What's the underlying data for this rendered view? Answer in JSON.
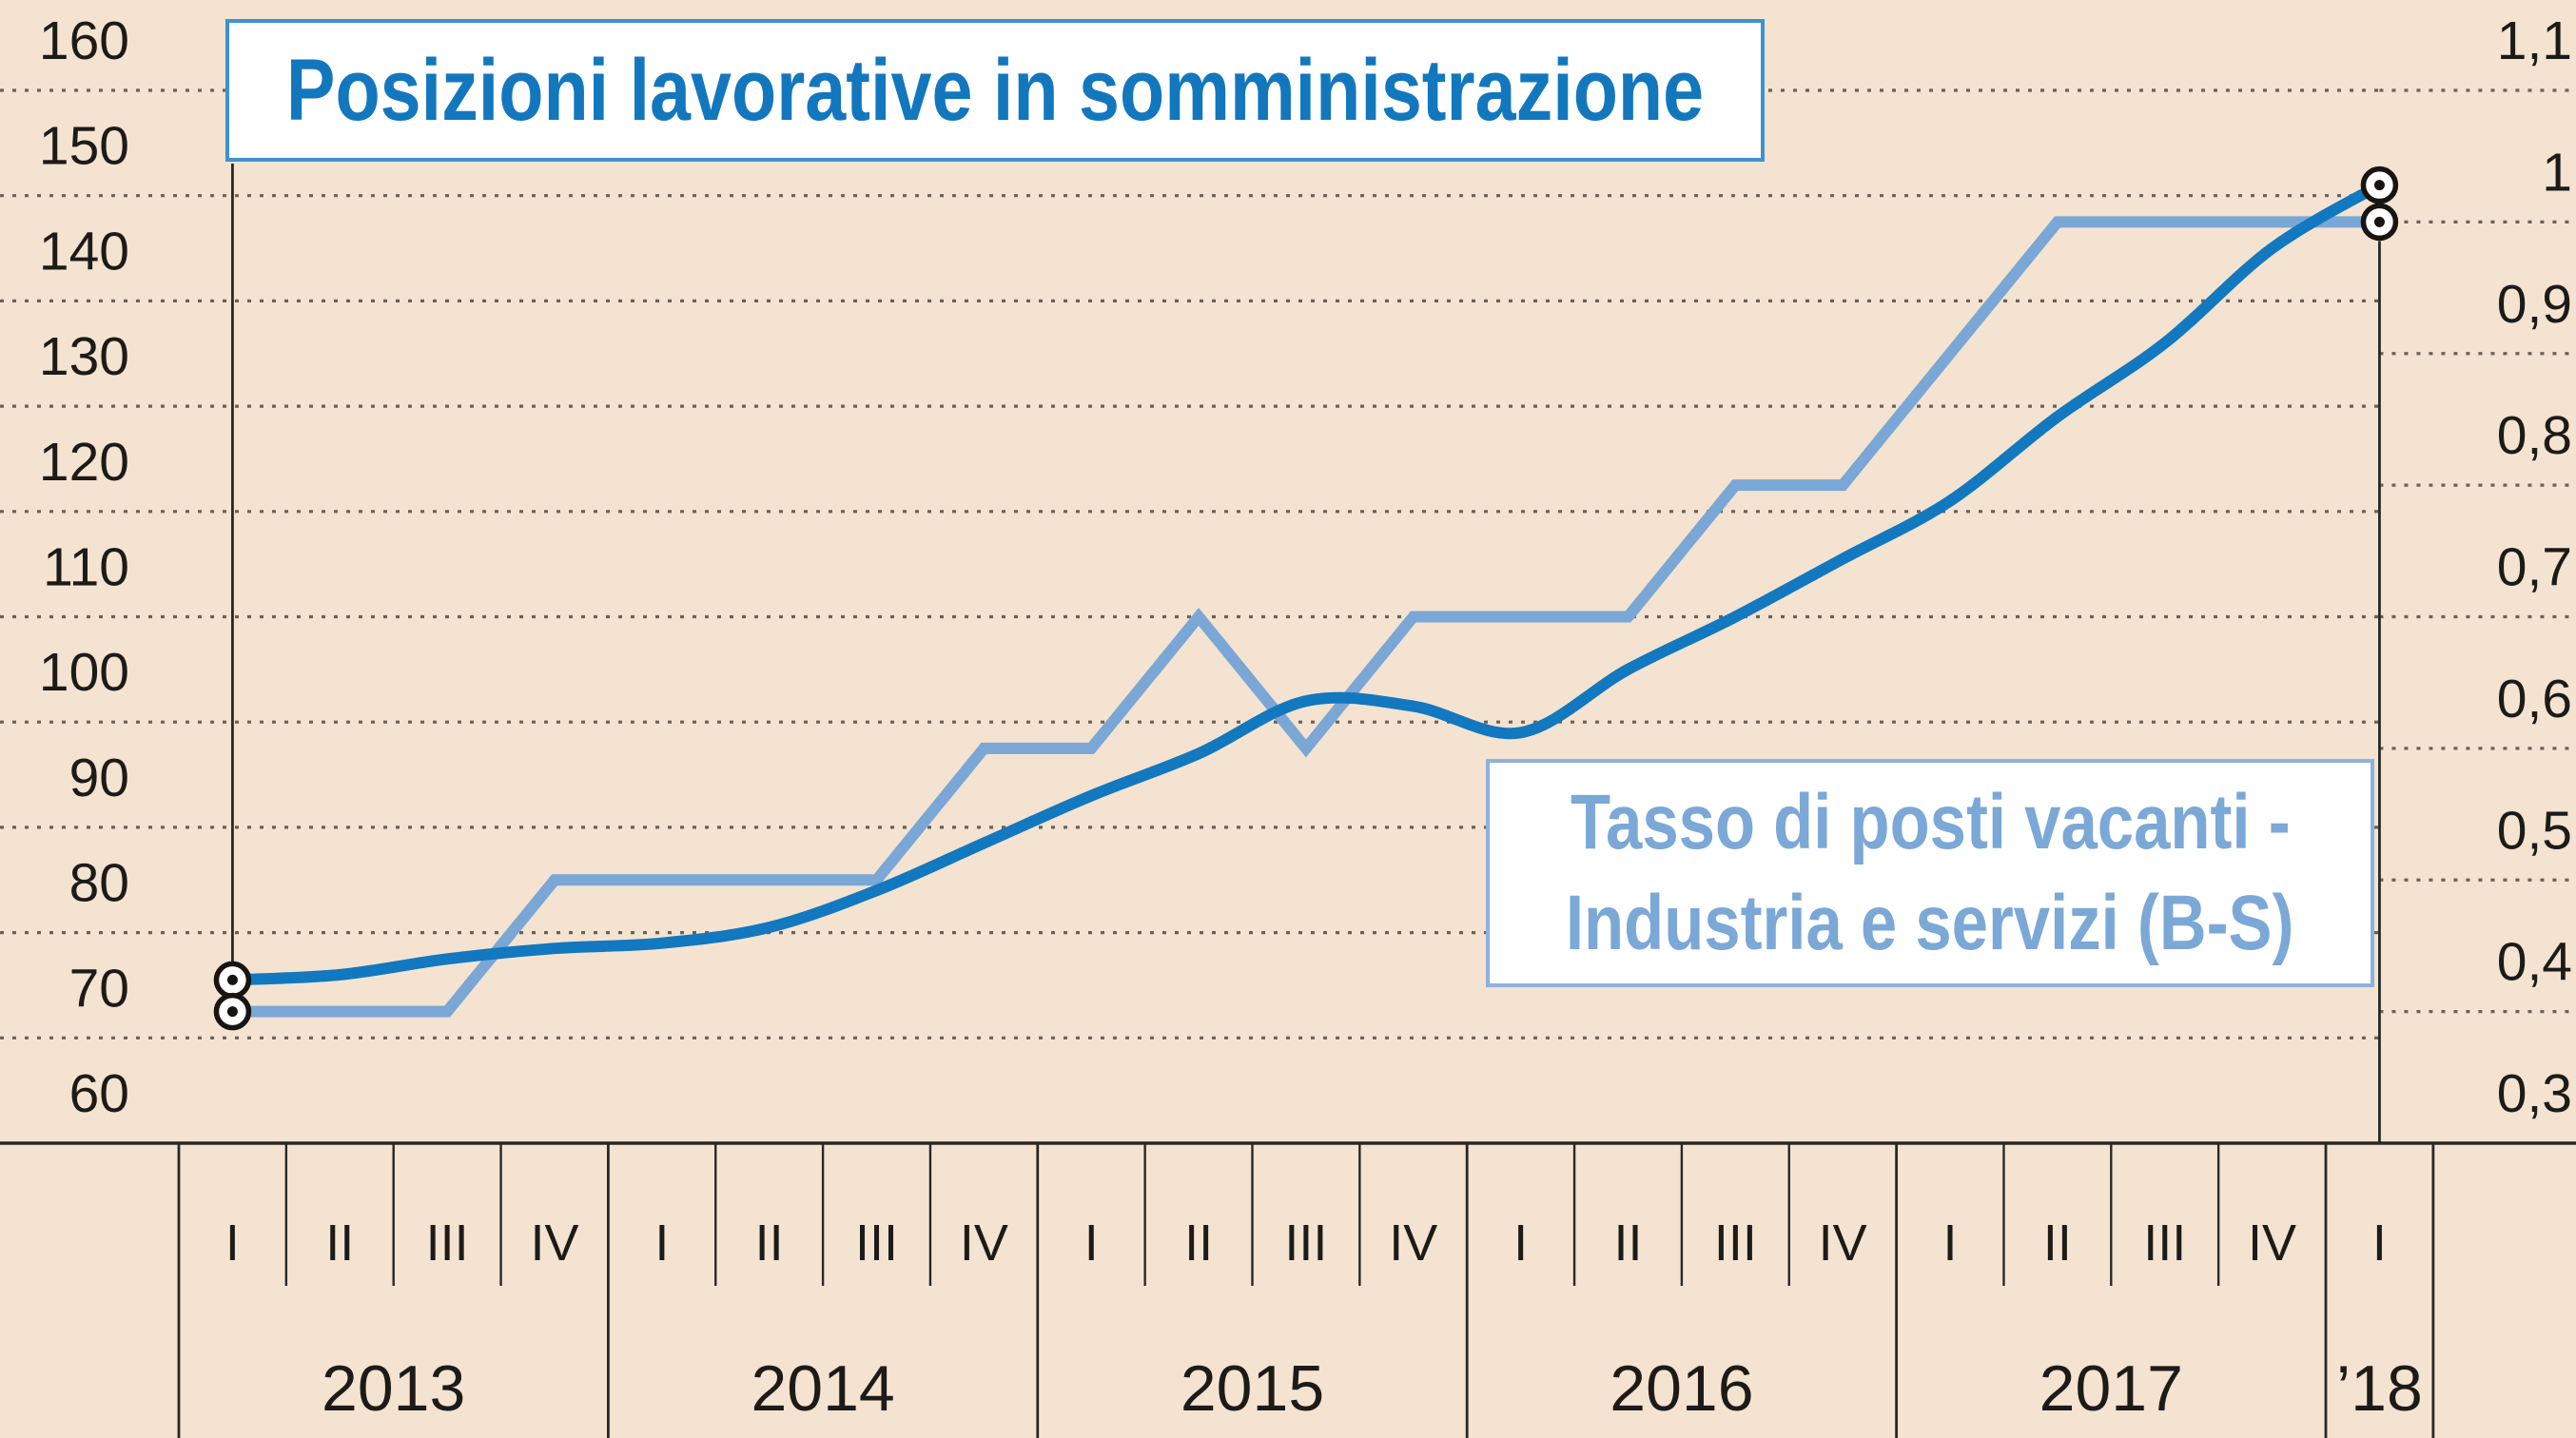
{
  "title": {
    "text": "Posizioni lavorative in somministrazione"
  },
  "series2_label": {
    "line1": "Tasso di posti vacanti -",
    "line2": "Industria e servizi (B-S)"
  },
  "colors": {
    "background": "#f4e3d1",
    "series1_line": "#1278bf",
    "series2_line": "#7aa7d5",
    "title_text": "#1377be",
    "title_border": "#3e92cf",
    "label2_text": "#7ba8d6",
    "label2_border": "#8cb2dc",
    "axis_text": "#1d1b18",
    "grid_dots": "#6a6156",
    "axis_lines": "#2b2823",
    "marker_ring": "#171412"
  },
  "chart_data": {
    "type": "line",
    "title": "Posizioni lavorative in somministrazione",
    "x_quarter_labels": [
      "I",
      "II",
      "III",
      "IV",
      "I",
      "II",
      "III",
      "IV",
      "I",
      "II",
      "III",
      "IV",
      "I",
      "II",
      "III",
      "IV",
      "I",
      "II",
      "III",
      "IV",
      "I"
    ],
    "x_year_labels": [
      "2013",
      "2014",
      "2015",
      "2016",
      "2017",
      "’18"
    ],
    "left_axis": {
      "min": 60,
      "max": 160,
      "tick_step": 10,
      "tick_labels": [
        "160",
        "150",
        "140",
        "130",
        "120",
        "110",
        "100",
        "90",
        "80",
        "70",
        "60"
      ]
    },
    "right_axis": {
      "min": 0.3,
      "max": 1.1,
      "tick_step": 0.1,
      "tick_labels": [
        "1,1",
        "1",
        "0,9",
        "0,8",
        "0,7",
        "0,6",
        "0,5",
        "0,4",
        "0,3"
      ]
    },
    "grid": "dotted",
    "legend_position": "boxes-overlaid",
    "series": [
      {
        "name": "Posizioni lavorative in somministrazione",
        "axis": "left",
        "style": "smooth",
        "values": [
          75.5,
          76,
          77.5,
          78.5,
          79,
          80.5,
          84,
          88.5,
          93,
          97,
          102,
          101.5,
          99,
          105,
          110,
          115.5,
          121,
          129,
          136,
          145,
          151
        ]
      },
      {
        "name": "Tasso di posti vacanti - Industria e servizi (B-S)",
        "axis": "right",
        "style": "straight",
        "values": [
          0.4,
          0.4,
          0.4,
          0.5,
          0.5,
          0.5,
          0.5,
          0.6,
          0.6,
          0.7,
          0.6,
          0.7,
          0.7,
          0.7,
          0.8,
          0.8,
          0.9,
          1.0,
          1.0,
          1.0,
          1.0
        ]
      }
    ]
  }
}
